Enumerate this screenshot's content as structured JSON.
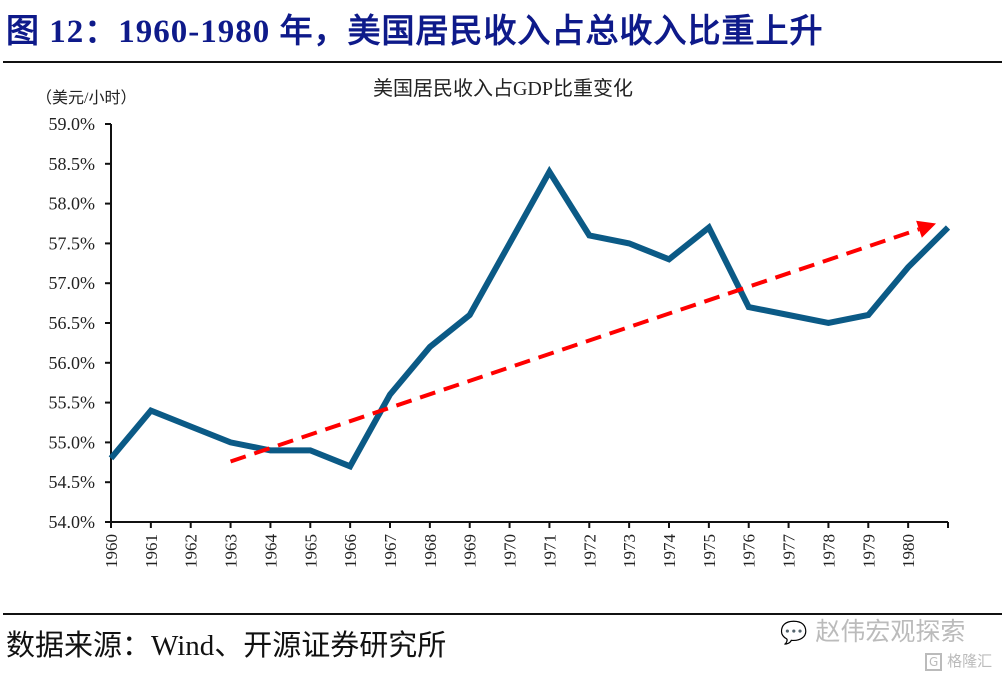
{
  "figure": {
    "title": "图 12：1960-1980 年，美国居民收入占总收入比重上升",
    "source": "数据来源：Wind、开源证券研究所",
    "watermark": "赵伟宏观探索",
    "watermark_small": "格隆汇"
  },
  "chart_data": {
    "type": "line",
    "title": "美国居民收入占GDP比重变化",
    "unit_label": "（美元/小时）",
    "xlabel": "",
    "ylabel": "",
    "x": [
      1960,
      1961,
      1962,
      1963,
      1964,
      1965,
      1966,
      1967,
      1968,
      1969,
      1970,
      1971,
      1972,
      1973,
      1974,
      1975,
      1976,
      1977,
      1978,
      1979,
      1980,
      1981
    ],
    "x_tick_labels": [
      "1960",
      "1961",
      "1962",
      "1963",
      "1964",
      "1965",
      "1966",
      "1967",
      "1968",
      "1969",
      "1970",
      "1971",
      "1972",
      "1973",
      "1974",
      "1975",
      "1976",
      "1977",
      "1978",
      "1979",
      "1980"
    ],
    "x_range": [
      1960,
      1981
    ],
    "y_ticks": [
      54.0,
      54.5,
      55.0,
      55.5,
      56.0,
      56.5,
      57.0,
      57.5,
      58.0,
      58.5,
      59.0
    ],
    "y_tick_labels": [
      "54.0%",
      "54.5%",
      "55.0%",
      "55.5%",
      "56.0%",
      "56.5%",
      "57.0%",
      "57.5%",
      "58.0%",
      "58.5%",
      "59.0%"
    ],
    "ylim": [
      54.0,
      59.0
    ],
    "grid": false,
    "legend": "none",
    "series": [
      {
        "name": "美国居民收入占GDP比重",
        "color": "#0b5a86",
        "values": [
          54.8,
          55.4,
          55.2,
          55.0,
          54.9,
          54.9,
          54.7,
          55.6,
          56.2,
          56.6,
          57.5,
          58.4,
          57.6,
          57.5,
          57.3,
          57.7,
          56.7,
          56.6,
          56.5,
          56.6,
          57.2,
          57.7
        ]
      }
    ],
    "annotations": [
      {
        "type": "trend-arrow",
        "style": "dashed",
        "color": "#ff0000",
        "from": {
          "x": 1963,
          "y": 54.76
        },
        "to": {
          "x": 1980.7,
          "y": 57.75
        }
      }
    ]
  }
}
